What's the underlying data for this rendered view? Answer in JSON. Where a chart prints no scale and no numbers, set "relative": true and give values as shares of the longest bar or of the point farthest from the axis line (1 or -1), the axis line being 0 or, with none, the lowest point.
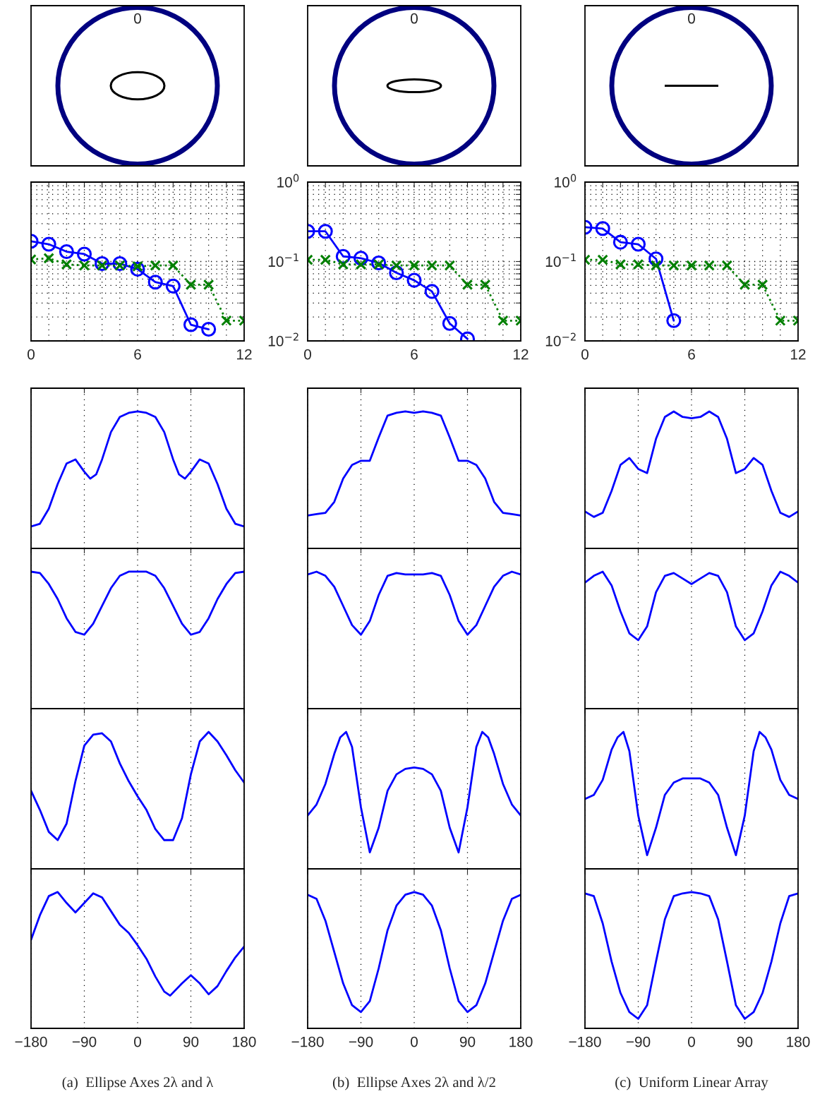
{
  "chart_data": [
    {
      "type": "other",
      "annotations": [
        "0"
      ]
    },
    {
      "type": "other",
      "annotations": [
        "0"
      ]
    },
    {
      "type": "other",
      "annotations": [
        "0"
      ]
    },
    {
      "type": "line",
      "log": true,
      "grid": true,
      "tick_labels": "x",
      "x": [
        0,
        1,
        2,
        3,
        4,
        5,
        6,
        7,
        8,
        9,
        10,
        11,
        12
      ],
      "xlim": [
        0,
        12
      ],
      "xticks": [
        0,
        {
          "value": 1,
          "label": null
        },
        {
          "value": 2,
          "label": null
        },
        {
          "value": 3,
          "label": null
        },
        {
          "value": 4,
          "label": null
        },
        {
          "value": 5,
          "label": null
        },
        6,
        {
          "value": 7,
          "label": null
        },
        {
          "value": 8,
          "label": null
        },
        {
          "value": 9,
          "label": null
        },
        {
          "value": 10,
          "label": null
        },
        {
          "value": 11,
          "label": null
        },
        12
      ],
      "ylim": [
        0.01,
        1
      ],
      "yticks": [
        {
          "value": 0.01,
          "label": null
        },
        {
          "value": 0.02,
          "label": null
        },
        {
          "value": 0.03,
          "label": null
        },
        {
          "value": 0.04,
          "label": null
        },
        {
          "value": 0.05,
          "label": null
        },
        {
          "value": 0.06,
          "label": null
        },
        {
          "value": 0.07,
          "label": null
        },
        {
          "value": 0.08,
          "label": null
        },
        {
          "value": 0.09,
          "label": null
        },
        {
          "value": 0.1,
          "label": null
        },
        {
          "value": 0.2,
          "label": null
        },
        {
          "value": 0.3,
          "label": null
        },
        {
          "value": 0.4,
          "label": null
        },
        {
          "value": 0.5,
          "label": null
        },
        {
          "value": 0.6,
          "label": null
        },
        {
          "value": 0.7,
          "label": null
        },
        {
          "value": 0.8,
          "label": null
        },
        {
          "value": 0.9,
          "label": null
        },
        {
          "value": 1,
          "label": null
        }
      ],
      "series": [
        {
          "color": "#0000ff",
          "marker": "circle",
          "line_style": "solid",
          "x": [
            0,
            1,
            2,
            3,
            4,
            5,
            6,
            7,
            8,
            9,
            10
          ],
          "values": [
            0.18,
            0.165,
            0.133,
            0.124,
            0.094,
            0.094,
            0.08,
            0.055,
            0.049,
            0.016,
            0.014
          ]
        },
        {
          "color": "#007f00",
          "marker": "cross",
          "line_style": "dotted",
          "values": [
            0.106,
            0.11,
            0.092,
            0.089,
            0.089,
            0.089,
            0.087,
            0.089,
            0.089,
            0.051,
            0.051,
            0.018,
            0.018
          ]
        }
      ]
    },
    {
      "type": "line",
      "log": true,
      "grid": true,
      "x": [
        0,
        1,
        2,
        3,
        4,
        5,
        6,
        7,
        8,
        9,
        10,
        11,
        12
      ],
      "xlim": [
        0,
        12
      ],
      "xticks": [
        0,
        {
          "value": 1,
          "label": null
        },
        {
          "value": 2,
          "label": null
        },
        {
          "value": 3,
          "label": null
        },
        {
          "value": 4,
          "label": null
        },
        {
          "value": 5,
          "label": null
        },
        6,
        {
          "value": 7,
          "label": null
        },
        {
          "value": 8,
          "label": null
        },
        {
          "value": 9,
          "label": null
        },
        {
          "value": 10,
          "label": null
        },
        {
          "value": 11,
          "label": null
        },
        12
      ],
      "ylim": [
        0.01,
        1
      ],
      "yticks": [
        {
          "value": 0.01,
          "label": "10$^{−2}$"
        },
        {
          "value": 0.02,
          "label": null
        },
        {
          "value": 0.03,
          "label": null
        },
        {
          "value": 0.04,
          "label": null
        },
        {
          "value": 0.05,
          "label": null
        },
        {
          "value": 0.06,
          "label": null
        },
        {
          "value": 0.07,
          "label": null
        },
        {
          "value": 0.08,
          "label": null
        },
        {
          "value": 0.09,
          "label": null
        },
        {
          "value": 0.1,
          "label": "10$^{−1}$"
        },
        {
          "value": 0.2,
          "label": null
        },
        {
          "value": 0.3,
          "label": null
        },
        {
          "value": 0.4,
          "label": null
        },
        {
          "value": 0.5,
          "label": null
        },
        {
          "value": 0.6,
          "label": null
        },
        {
          "value": 0.7,
          "label": null
        },
        {
          "value": 0.8,
          "label": null
        },
        {
          "value": 0.9,
          "label": null
        },
        {
          "value": 1,
          "label": "10$^{0}$"
        }
      ],
      "series": [
        {
          "color": "#0000ff",
          "marker": "circle",
          "line_style": "solid",
          "x": [
            0,
            1,
            2,
            3,
            4,
            5,
            6,
            7,
            8,
            9
          ],
          "values": [
            0.24,
            0.24,
            0.116,
            0.11,
            0.096,
            0.072,
            0.058,
            0.042,
            0.0166,
            0.0106
          ]
        },
        {
          "color": "#007f00",
          "marker": "cross",
          "line_style": "dotted",
          "values": [
            0.105,
            0.105,
            0.092,
            0.092,
            0.092,
            0.089,
            0.089,
            0.089,
            0.089,
            0.051,
            0.051,
            0.018,
            0.018
          ]
        }
      ]
    },
    {
      "type": "line",
      "log": true,
      "grid": true,
      "x": [
        0,
        1,
        2,
        3,
        4,
        5,
        6,
        7,
        8,
        9,
        10,
        11,
        12
      ],
      "xlim": [
        0,
        12
      ],
      "xticks": [
        0,
        {
          "value": 1,
          "label": null
        },
        {
          "value": 2,
          "label": null
        },
        {
          "value": 3,
          "label": null
        },
        {
          "value": 4,
          "label": null
        },
        {
          "value": 5,
          "label": null
        },
        6,
        {
          "value": 7,
          "label": null
        },
        {
          "value": 8,
          "label": null
        },
        {
          "value": 9,
          "label": null
        },
        {
          "value": 10,
          "label": null
        },
        {
          "value": 11,
          "label": null
        },
        12
      ],
      "ylim": [
        0.01,
        1
      ],
      "yticks": [
        {
          "value": 0.01,
          "label": "10$^{−2}$"
        },
        {
          "value": 0.02,
          "label": null
        },
        {
          "value": 0.03,
          "label": null
        },
        {
          "value": 0.04,
          "label": null
        },
        {
          "value": 0.05,
          "label": null
        },
        {
          "value": 0.06,
          "label": null
        },
        {
          "value": 0.07,
          "label": null
        },
        {
          "value": 0.08,
          "label": null
        },
        {
          "value": 0.09,
          "label": null
        },
        {
          "value": 0.1,
          "label": "10$^{−1}$"
        },
        {
          "value": 0.2,
          "label": null
        },
        {
          "value": 0.3,
          "label": null
        },
        {
          "value": 0.4,
          "label": null
        },
        {
          "value": 0.5,
          "label": null
        },
        {
          "value": 0.6,
          "label": null
        },
        {
          "value": 0.7,
          "label": null
        },
        {
          "value": 0.8,
          "label": null
        },
        {
          "value": 0.9,
          "label": null
        },
        {
          "value": 1,
          "label": "10$^{0}$"
        }
      ],
      "series": [
        {
          "color": "#0000ff",
          "marker": "circle",
          "line_style": "solid",
          "x": [
            0,
            1,
            2,
            3,
            4,
            5
          ],
          "values": [
            0.27,
            0.26,
            0.175,
            0.165,
            0.108,
            0.018
          ]
        },
        {
          "color": "#007f00",
          "marker": "cross",
          "line_style": "dotted",
          "values": [
            0.105,
            0.105,
            0.092,
            0.092,
            0.089,
            0.089,
            0.089,
            0.089,
            0.089,
            0.051,
            0.051,
            0.018,
            0.018
          ]
        }
      ]
    },
    {
      "type": "line",
      "relative": true,
      "grid": "x",
      "tick_labels": false,
      "xlim": [
        -180,
        180
      ],
      "xticks": [
        -180,
        -90,
        0,
        90,
        180
      ],
      "series": [
        {
          "color": "#0000ff",
          "x": [
            -180,
            -165,
            -150,
            -135,
            -120,
            -105,
            -90,
            -80,
            -70,
            -60,
            -45,
            -30,
            -15,
            0,
            15,
            30,
            45,
            60,
            70,
            80,
            90,
            105,
            120,
            135,
            150,
            165,
            180
          ],
          "values": [
            0.16,
            0.18,
            0.29,
            0.47,
            0.62,
            0.65,
            0.56,
            0.51,
            0.54,
            0.65,
            0.85,
            0.96,
            0.99,
            1,
            0.99,
            0.96,
            0.85,
            0.65,
            0.54,
            0.51,
            0.56,
            0.65,
            0.62,
            0.47,
            0.29,
            0.18,
            0.16
          ]
        }
      ]
    },
    {
      "type": "line",
      "relative": true,
      "grid": "x",
      "tick_labels": false,
      "xlim": [
        -180,
        180
      ],
      "xticks": [
        -180,
        -90,
        0,
        90,
        180
      ],
      "series": [
        {
          "color": "#0000ff",
          "x": [
            -180,
            -165,
            -150,
            -135,
            -120,
            -105,
            -90,
            -75,
            -60,
            -45,
            -30,
            -15,
            0,
            15,
            30,
            45,
            60,
            75,
            90,
            105,
            120,
            135,
            150,
            165,
            180
          ],
          "values": [
            0.24,
            0.25,
            0.26,
            0.34,
            0.51,
            0.61,
            0.64,
            0.64,
            0.81,
            0.97,
            0.99,
            1,
            0.99,
            1,
            0.99,
            0.97,
            0.81,
            0.64,
            0.64,
            0.61,
            0.51,
            0.34,
            0.26,
            0.25,
            0.24
          ]
        }
      ]
    },
    {
      "type": "line",
      "relative": true,
      "grid": "x",
      "tick_labels": false,
      "xlim": [
        -180,
        180
      ],
      "xticks": [
        -180,
        -90,
        0,
        90,
        180
      ],
      "series": [
        {
          "color": "#0000ff",
          "x": [
            -180,
            -165,
            -150,
            -135,
            -120,
            -105,
            -90,
            -75,
            -60,
            -45,
            -30,
            -15,
            0,
            15,
            30,
            45,
            60,
            75,
            90,
            105,
            120,
            135,
            150,
            165,
            180
          ],
          "values": [
            0.27,
            0.23,
            0.26,
            0.42,
            0.61,
            0.66,
            0.58,
            0.55,
            0.8,
            0.96,
            1,
            0.96,
            0.95,
            0.96,
            1,
            0.96,
            0.8,
            0.55,
            0.58,
            0.66,
            0.61,
            0.42,
            0.26,
            0.23,
            0.27
          ]
        }
      ]
    },
    {
      "type": "line",
      "relative": true,
      "grid": "x",
      "tick_labels": false,
      "xlim": [
        -180,
        180
      ],
      "xticks": [
        -180,
        -90,
        0,
        90,
        180
      ],
      "series": [
        {
          "color": "#0000ff",
          "x": [
            -180,
            -165,
            -150,
            -135,
            -120,
            -105,
            -90,
            -75,
            -60,
            -45,
            -30,
            -15,
            0,
            15,
            30,
            45,
            60,
            75,
            90,
            105,
            120,
            135,
            150,
            165,
            180
          ],
          "values": [
            1,
            0.99,
            0.91,
            0.8,
            0.66,
            0.56,
            0.54,
            0.62,
            0.75,
            0.88,
            0.97,
            1,
            1,
            1,
            0.97,
            0.88,
            0.75,
            0.62,
            0.54,
            0.56,
            0.66,
            0.8,
            0.91,
            0.99,
            1
          ]
        }
      ]
    },
    {
      "type": "line",
      "relative": true,
      "grid": "x",
      "tick_labels": false,
      "xlim": [
        -180,
        180
      ],
      "xticks": [
        -180,
        -90,
        0,
        90,
        180
      ],
      "series": [
        {
          "color": "#0000ff",
          "x": [
            -180,
            -165,
            -150,
            -135,
            -120,
            -105,
            -90,
            -75,
            -60,
            -45,
            -30,
            -15,
            0,
            15,
            30,
            45,
            60,
            75,
            90,
            105,
            120,
            135,
            150,
            165,
            180
          ],
          "values": [
            0.98,
            1,
            0.97,
            0.89,
            0.75,
            0.61,
            0.54,
            0.64,
            0.83,
            0.97,
            0.99,
            0.98,
            0.98,
            0.98,
            0.99,
            0.97,
            0.83,
            0.64,
            0.54,
            0.61,
            0.75,
            0.89,
            0.97,
            1,
            0.98
          ]
        }
      ]
    },
    {
      "type": "line",
      "relative": true,
      "grid": "x",
      "tick_labels": false,
      "xlim": [
        -180,
        180
      ],
      "xticks": [
        -180,
        -90,
        0,
        90,
        180
      ],
      "series": [
        {
          "color": "#0000ff",
          "x": [
            -180,
            -165,
            -150,
            -135,
            -120,
            -105,
            -90,
            -75,
            -60,
            -45,
            -30,
            -15,
            0,
            15,
            30,
            45,
            60,
            75,
            90,
            105,
            120,
            135,
            150,
            165,
            180
          ],
          "values": [
            0.92,
            0.97,
            1,
            0.9,
            0.71,
            0.55,
            0.5,
            0.6,
            0.85,
            0.97,
            0.99,
            0.95,
            0.91,
            0.95,
            0.99,
            0.97,
            0.85,
            0.6,
            0.5,
            0.55,
            0.71,
            0.9,
            1,
            0.97,
            0.92
          ]
        }
      ]
    },
    {
      "type": "line",
      "relative": true,
      "grid": "x",
      "tick_labels": false,
      "xlim": [
        -180,
        180
      ],
      "xticks": [
        -180,
        -90,
        0,
        90,
        180
      ],
      "series": [
        {
          "color": "#0000ff",
          "x": [
            -180,
            -165,
            -150,
            -135,
            -120,
            -105,
            -90,
            -75,
            -60,
            -45,
            -30,
            -15,
            0,
            15,
            30,
            45,
            60,
            75,
            90,
            105,
            120,
            135,
            150,
            165,
            180
          ],
          "values": [
            0.57,
            0.43,
            0.27,
            0.21,
            0.33,
            0.64,
            0.9,
            0.98,
            0.99,
            0.93,
            0.77,
            0.64,
            0.53,
            0.43,
            0.29,
            0.21,
            0.21,
            0.37,
            0.69,
            0.93,
            1,
            0.93,
            0.83,
            0.72,
            0.63
          ]
        }
      ]
    },
    {
      "type": "line",
      "relative": true,
      "grid": "x",
      "tick_labels": false,
      "xlim": [
        -180,
        180
      ],
      "xticks": [
        -180,
        -90,
        0,
        90,
        180
      ],
      "series": [
        {
          "color": "#0000ff",
          "x": [
            -180,
            -165,
            -150,
            -135,
            -125,
            -115,
            -105,
            -90,
            -75,
            -60,
            -45,
            -30,
            -15,
            0,
            15,
            30,
            45,
            60,
            75,
            90,
            105,
            115,
            125,
            135,
            150,
            165,
            180
          ],
          "values": [
            0.39,
            0.47,
            0.62,
            0.84,
            0.96,
            1,
            0.89,
            0.45,
            0.12,
            0.3,
            0.57,
            0.69,
            0.73,
            0.74,
            0.73,
            0.69,
            0.57,
            0.3,
            0.12,
            0.45,
            0.89,
            1,
            0.96,
            0.84,
            0.62,
            0.47,
            0.39
          ]
        }
      ]
    },
    {
      "type": "line",
      "relative": true,
      "grid": "x",
      "tick_labels": false,
      "xlim": [
        -180,
        180
      ],
      "xticks": [
        -180,
        -90,
        0,
        90,
        180
      ],
      "series": [
        {
          "color": "#0000ff",
          "x": [
            -180,
            -165,
            -150,
            -135,
            -125,
            -115,
            -105,
            -90,
            -75,
            -60,
            -45,
            -30,
            -15,
            0,
            15,
            30,
            45,
            60,
            75,
            90,
            105,
            115,
            125,
            135,
            150,
            165,
            180
          ],
          "values": [
            0.51,
            0.54,
            0.65,
            0.87,
            0.96,
            1,
            0.86,
            0.39,
            0.1,
            0.3,
            0.54,
            0.63,
            0.66,
            0.66,
            0.66,
            0.63,
            0.54,
            0.3,
            0.1,
            0.39,
            0.86,
            1,
            0.96,
            0.87,
            0.65,
            0.54,
            0.51
          ]
        }
      ]
    },
    {
      "type": "line",
      "relative": true,
      "grid": "x",
      "tick_labels": "x",
      "xlim": [
        -180,
        180
      ],
      "xticks": [
        {
          "value": -180,
          "label": "−180"
        },
        {
          "value": -90,
          "label": "−90"
        },
        0,
        90,
        180
      ],
      "annotations": [
        "(a)  Ellipse Axes 2λ and λ"
      ],
      "series": [
        {
          "color": "#0000ff",
          "x": [
            -180,
            -165,
            -150,
            -135,
            -120,
            -105,
            -90,
            -75,
            -60,
            -45,
            -30,
            -15,
            0,
            15,
            30,
            45,
            55,
            75,
            90,
            105,
            120,
            135,
            150,
            165,
            180
          ],
          "values": [
            0.65,
            0.83,
            0.97,
            1,
            0.92,
            0.85,
            0.92,
            0.99,
            0.96,
            0.86,
            0.76,
            0.7,
            0.61,
            0.51,
            0.38,
            0.27,
            0.24,
            0.33,
            0.39,
            0.33,
            0.25,
            0.31,
            0.42,
            0.52,
            0.6
          ]
        }
      ]
    },
    {
      "type": "line",
      "relative": true,
      "grid": "x",
      "tick_labels": "x",
      "xlim": [
        -180,
        180
      ],
      "xticks": [
        {
          "value": -180,
          "label": "−180"
        },
        {
          "value": -90,
          "label": "−90"
        },
        0,
        90,
        180
      ],
      "annotations": [
        "(b)  Ellipse Axes 2λ and λ/2"
      ],
      "series": [
        {
          "color": "#0000ff",
          "x": [
            -180,
            -165,
            -150,
            -135,
            -120,
            -105,
            -90,
            -75,
            -60,
            -45,
            -30,
            -15,
            0,
            15,
            30,
            45,
            60,
            75,
            90,
            105,
            120,
            135,
            150,
            165,
            180
          ],
          "values": [
            0.98,
            0.95,
            0.79,
            0.56,
            0.33,
            0.17,
            0.12,
            0.2,
            0.44,
            0.72,
            0.9,
            0.98,
            1,
            0.98,
            0.9,
            0.72,
            0.44,
            0.2,
            0.12,
            0.17,
            0.33,
            0.56,
            0.79,
            0.95,
            0.98
          ]
        }
      ]
    },
    {
      "type": "line",
      "relative": true,
      "grid": "x",
      "tick_labels": "x",
      "xlim": [
        -180,
        180
      ],
      "xticks": [
        {
          "value": -180,
          "label": "−180"
        },
        {
          "value": -90,
          "label": "−90"
        },
        0,
        90,
        180
      ],
      "annotations": [
        "(c)  Uniform Linear Array"
      ],
      "series": [
        {
          "color": "#0000ff",
          "x": [
            -180,
            -165,
            -150,
            -135,
            -120,
            -105,
            -90,
            -75,
            -60,
            -45,
            -30,
            -15,
            0,
            15,
            30,
            45,
            60,
            75,
            90,
            105,
            120,
            135,
            150,
            165,
            180
          ],
          "values": [
            0.99,
            0.97,
            0.77,
            0.49,
            0.26,
            0.12,
            0.07,
            0.17,
            0.49,
            0.8,
            0.97,
            0.99,
            1,
            0.99,
            0.97,
            0.8,
            0.49,
            0.17,
            0.07,
            0.12,
            0.26,
            0.49,
            0.77,
            0.97,
            0.99
          ]
        }
      ]
    }
  ]
}
